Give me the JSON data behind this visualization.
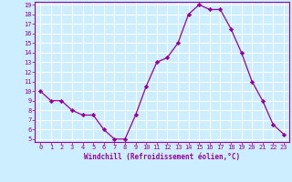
{
  "x": [
    0,
    1,
    2,
    3,
    4,
    5,
    6,
    7,
    8,
    9,
    10,
    11,
    12,
    13,
    14,
    15,
    16,
    17,
    18,
    19,
    20,
    21,
    22,
    23
  ],
  "y": [
    10,
    9,
    9,
    8,
    7.5,
    7.5,
    6,
    5,
    5,
    7.5,
    10.5,
    13,
    13.5,
    15,
    18,
    19,
    18.5,
    18.5,
    16.5,
    14,
    11,
    9,
    6.5,
    5.5
  ],
  "line_color": "#990099",
  "marker": "D",
  "marker_size": 2.2,
  "bg_color": "#cceeff",
  "grid_color": "#aacccc",
  "xlabel": "Windchill (Refroidissement éolien,°C)",
  "xlabel_color": "#990099",
  "tick_color": "#990099",
  "ylim": [
    5,
    19
  ],
  "xlim": [
    0,
    23
  ],
  "yticks": [
    5,
    6,
    7,
    8,
    9,
    10,
    11,
    12,
    13,
    14,
    15,
    16,
    17,
    18,
    19
  ],
  "xticks": [
    0,
    1,
    2,
    3,
    4,
    5,
    6,
    7,
    8,
    9,
    10,
    11,
    12,
    13,
    14,
    15,
    16,
    17,
    18,
    19,
    20,
    21,
    22,
    23
  ],
  "label_fontsize": 5.5,
  "tick_fontsize": 5.0
}
